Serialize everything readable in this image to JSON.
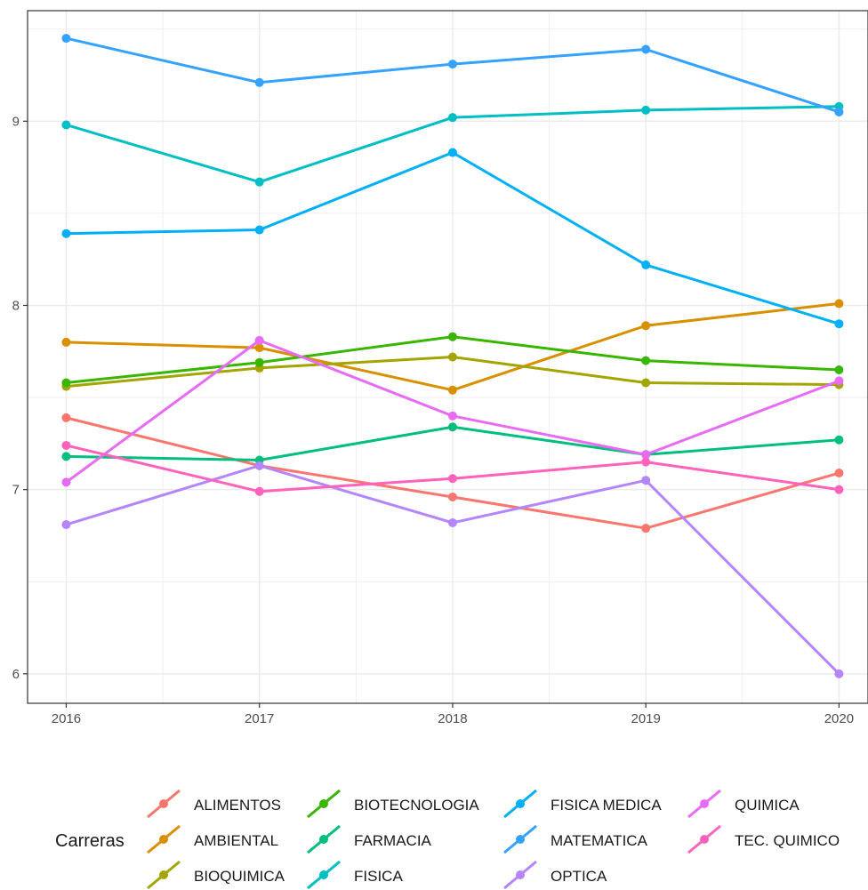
{
  "chart_data": {
    "type": "line",
    "x": [
      2016,
      2017,
      2018,
      2019,
      2020
    ],
    "x_tick_labels": [
      "2016",
      "2017",
      "2018",
      "2019",
      "2020"
    ],
    "y_ticks": [
      6,
      7,
      8,
      9
    ],
    "y_tick_labels": [
      "6",
      "7",
      "8",
      "9"
    ],
    "ylim": [
      5.84,
      9.6
    ],
    "xlim": [
      2015.8,
      2020.15
    ],
    "grid": true,
    "legend_title": "Carreras",
    "legend_position": "bottom",
    "series": [
      {
        "name": "ALIMENTOS",
        "color": "#F8766D",
        "values": [
          7.39,
          7.13,
          6.96,
          6.79,
          7.09
        ]
      },
      {
        "name": "AMBIENTAL",
        "color": "#D89000",
        "values": [
          7.8,
          7.77,
          7.54,
          7.89,
          8.01
        ]
      },
      {
        "name": "BIOQUIMICA",
        "color": "#A3A500",
        "values": [
          7.56,
          7.66,
          7.72,
          7.58,
          7.57
        ]
      },
      {
        "name": "BIOTECNOLOGIA",
        "color": "#39B600",
        "values": [
          7.58,
          7.69,
          7.83,
          7.7,
          7.65
        ]
      },
      {
        "name": "FARMACIA",
        "color": "#00BF7D",
        "values": [
          7.18,
          7.16,
          7.34,
          7.19,
          7.27
        ]
      },
      {
        "name": "FISICA",
        "color": "#00BFC4",
        "values": [
          8.98,
          8.67,
          9.02,
          9.06,
          9.08
        ]
      },
      {
        "name": "FISICA MEDICA",
        "color": "#00B0F6",
        "values": [
          8.39,
          8.41,
          8.83,
          8.22,
          7.9
        ]
      },
      {
        "name": "MATEMATICA",
        "color": "#35A2FF",
        "values": [
          9.45,
          9.21,
          9.31,
          9.39,
          9.05
        ]
      },
      {
        "name": "OPTICA",
        "color": "#B385FF",
        "values": [
          6.81,
          7.13,
          6.82,
          7.05,
          6.0
        ]
      },
      {
        "name": "QUIMICA",
        "color": "#E76BF3",
        "values": [
          7.04,
          7.81,
          7.4,
          7.19,
          7.59
        ]
      },
      {
        "name": "TEC. QUIMICO",
        "color": "#FF62BC",
        "values": [
          7.24,
          6.99,
          7.06,
          7.15,
          7.0
        ]
      }
    ]
  }
}
